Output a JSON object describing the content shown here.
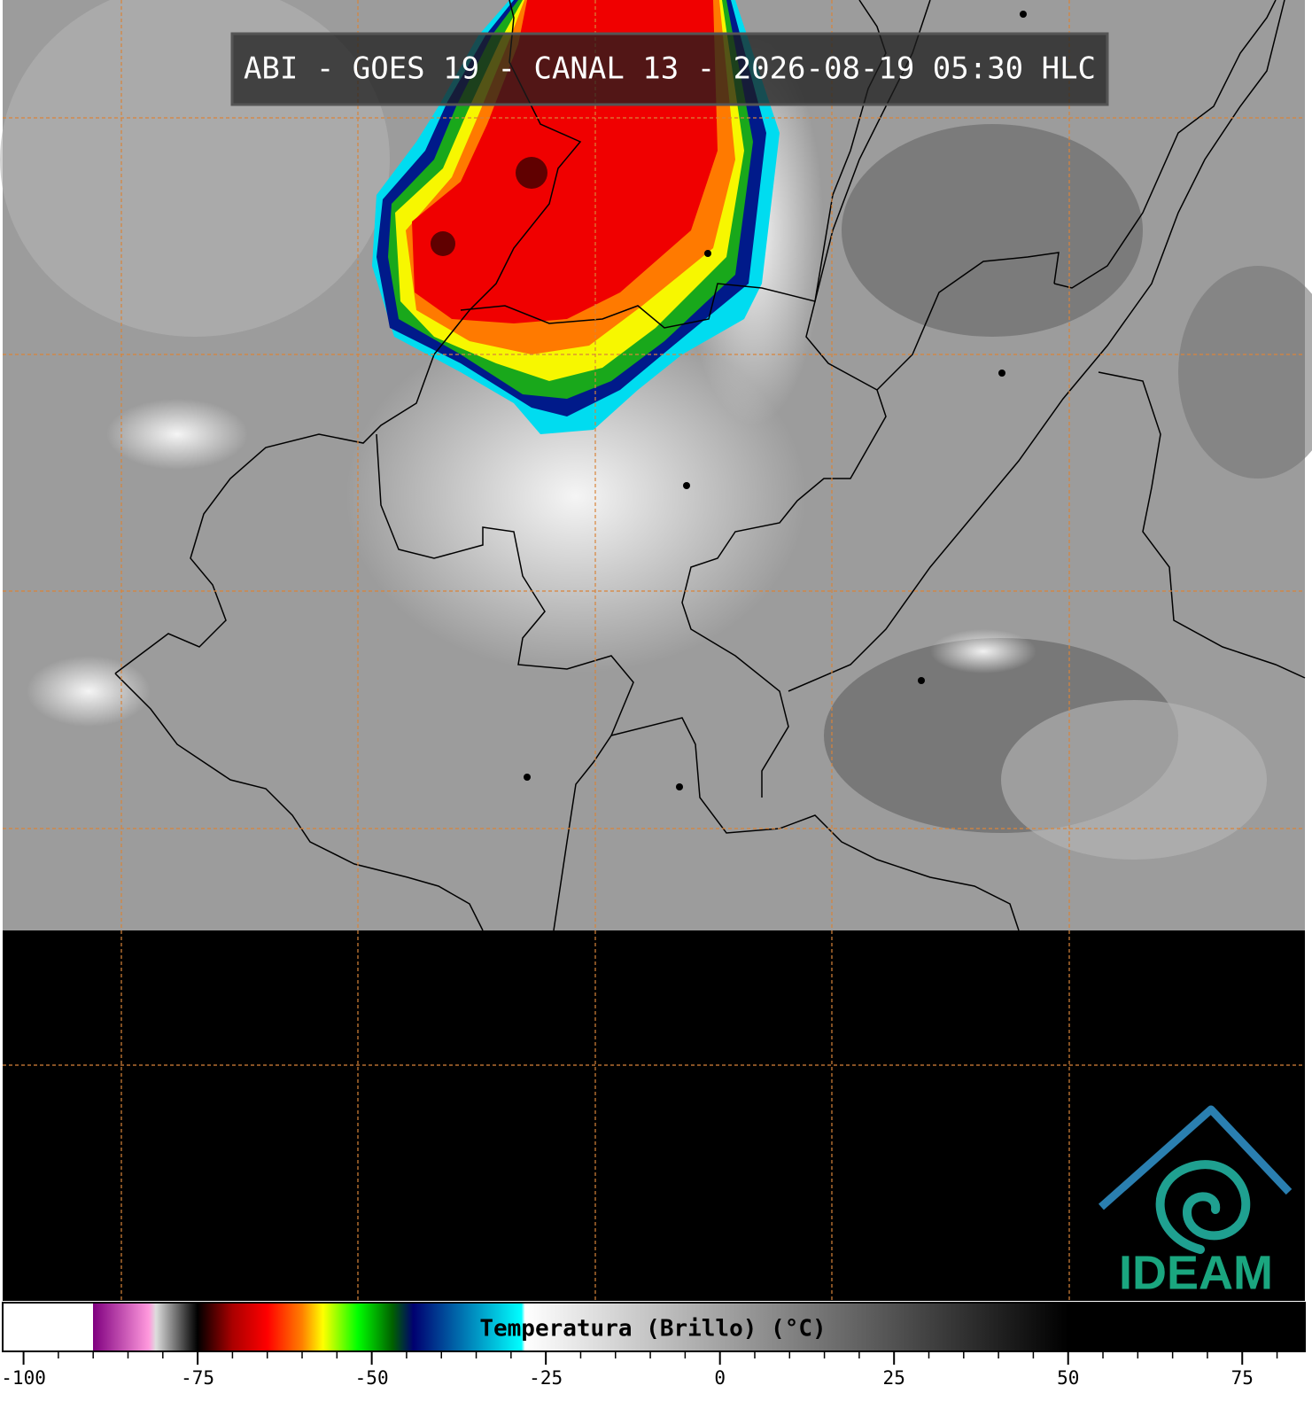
{
  "header": {
    "title": "ABI - GOES 19 - CANAL 13 - 2026-08-19 05:30 HLC"
  },
  "colorbar": {
    "label": "Temperatura (Brillo) (°C)",
    "xlim": [
      -103,
      84
    ],
    "xticks": [
      -100,
      -75,
      -50,
      -25,
      0,
      25,
      50,
      75
    ],
    "xticks_minor": [
      -95,
      -90,
      -85,
      -80,
      -70,
      -65,
      -60,
      -55,
      -45,
      -40,
      -35,
      -30,
      -20,
      -15,
      -10,
      -5,
      5,
      10,
      15,
      20,
      30,
      35,
      40,
      45,
      55,
      60,
      65,
      70,
      80
    ],
    "stops": [
      {
        "value": -103,
        "color": "#ffffff"
      },
      {
        "value": -90,
        "color": "#ffffff"
      },
      {
        "value": -90,
        "color": "#800080"
      },
      {
        "value": -82,
        "color": "#ff99dd"
      },
      {
        "value": -81,
        "color": "#dddddd"
      },
      {
        "value": -76,
        "color": "#222222"
      },
      {
        "value": -75,
        "color": "#000000"
      },
      {
        "value": -70,
        "color": "#aa0000"
      },
      {
        "value": -65,
        "color": "#ff0000"
      },
      {
        "value": -60,
        "color": "#ff8000"
      },
      {
        "value": -57,
        "color": "#ffff00"
      },
      {
        "value": -52,
        "color": "#00ff00"
      },
      {
        "value": -47,
        "color": "#006000"
      },
      {
        "value": -44,
        "color": "#000070"
      },
      {
        "value": -28.5,
        "color": "#00ffff"
      },
      {
        "value": -28,
        "color": "#ffffff"
      },
      {
        "value": 50,
        "color": "#000000"
      },
      {
        "value": 84,
        "color": "#000000"
      }
    ]
  },
  "logo": {
    "text": "IDEAM"
  }
}
